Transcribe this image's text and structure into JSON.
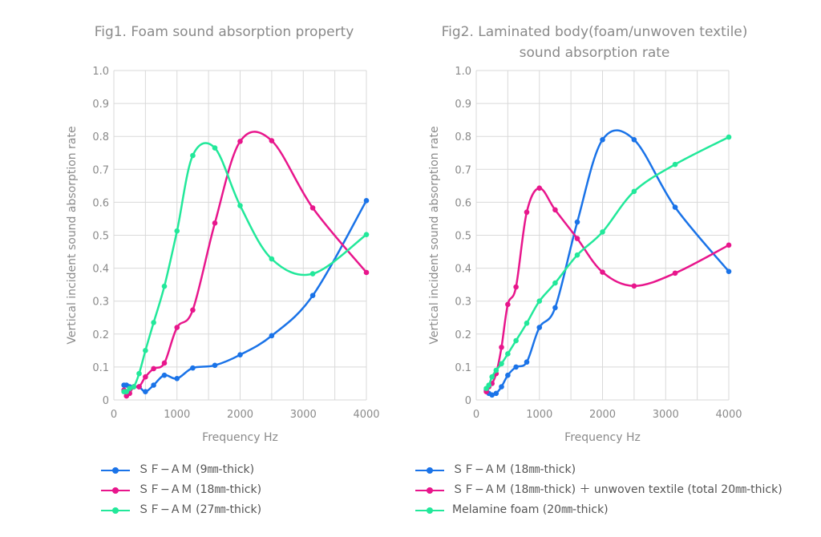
{
  "chart_data": [
    {
      "type": "line",
      "title": "Fig1. Foam sound absorption property",
      "title_lines": [
        "Fig1. Foam sound absorption property"
      ],
      "xlabel": "Frequency Hz",
      "ylabel": "Vertical incident sound absorption rate",
      "xlim": [
        0,
        4000
      ],
      "ylim": [
        0,
        1.0
      ],
      "xticks": [
        "0",
        "1000",
        "2000",
        "3000",
        "4000"
      ],
      "yticks": [
        "0",
        "0.1",
        "0.2",
        "0.3",
        "0.4",
        "0.5",
        "0.6",
        "0.7",
        "0.8",
        "0.9",
        "1.0"
      ],
      "grid": true,
      "legend_position": "bottom",
      "x": [
        160,
        200,
        250,
        315,
        400,
        500,
        630,
        800,
        1000,
        1250,
        1600,
        2000,
        2500,
        3150,
        4000
      ],
      "series": [
        {
          "name": "ＳＦ−ＡＭ (9㎜-thick)",
          "color": "#1a73e8",
          "values": [
            0.045,
            0.045,
            0.04,
            0.04,
            0.04,
            0.025,
            0.045,
            0.075,
            0.065,
            0.097,
            0.105,
            0.137,
            0.195,
            0.317,
            0.605
          ]
        },
        {
          "name": "ＳＦ−ＡＭ (18㎜-thick)",
          "color": "#e8168c",
          "values": [
            0.03,
            0.012,
            0.02,
            0.04,
            0.04,
            0.07,
            0.095,
            0.112,
            0.22,
            0.273,
            0.537,
            0.785,
            0.787,
            0.583,
            0.387
          ]
        },
        {
          "name": "ＳＦ−ＡＭ (27㎜-thick)",
          "color": "#22e89a",
          "values": [
            0.025,
            0.025,
            0.035,
            0.04,
            0.08,
            0.15,
            0.235,
            0.345,
            0.513,
            0.742,
            0.765,
            0.59,
            0.428,
            0.383,
            0.502
          ]
        }
      ]
    },
    {
      "type": "line",
      "title": "Fig2. Laminated body(foam/unwoven textile) sound absorption rate",
      "title_lines": [
        "Fig2. Laminated body(foam/unwoven textile)",
        "sound absorption rate"
      ],
      "xlabel": "Frequency Hz",
      "ylabel": "Vertical incident sound absorption rate",
      "xlim": [
        0,
        4000
      ],
      "ylim": [
        0,
        1.0
      ],
      "xticks": [
        "0",
        "1000",
        "2000",
        "3000",
        "4000"
      ],
      "yticks": [
        "0",
        "0.1",
        "0.2",
        "0.3",
        "0.4",
        "0.5",
        "0.6",
        "0.7",
        "0.8",
        "0.9",
        "1.0"
      ],
      "grid": true,
      "legend_position": "bottom",
      "x": [
        160,
        200,
        250,
        315,
        400,
        500,
        630,
        800,
        1000,
        1250,
        1600,
        2000,
        2500,
        3150,
        4000
      ],
      "series": [
        {
          "name": "ＳＦ−ＡＭ (18㎜-thick)",
          "color": "#1a73e8",
          "values": [
            0.03,
            0.02,
            0.015,
            0.02,
            0.04,
            0.075,
            0.1,
            0.115,
            0.22,
            0.28,
            0.54,
            0.79,
            0.79,
            0.585,
            0.39
          ]
        },
        {
          "name": "ＳＦ−ＡＭ (18㎜-thick) ＋ unwoven textile (total 20㎜-thick)",
          "color": "#e8168c",
          "values": [
            0.025,
            0.04,
            0.05,
            0.08,
            0.16,
            0.29,
            0.343,
            0.57,
            0.643,
            0.577,
            0.49,
            0.388,
            0.346,
            0.385,
            0.47
          ]
        },
        {
          "name": "Melamine foam (20㎜-thick)",
          "color": "#22e89a",
          "values": [
            0.035,
            0.045,
            0.07,
            0.09,
            0.11,
            0.14,
            0.18,
            0.233,
            0.3,
            0.355,
            0.44,
            0.51,
            0.633,
            0.715,
            0.798
          ]
        }
      ]
    }
  ]
}
